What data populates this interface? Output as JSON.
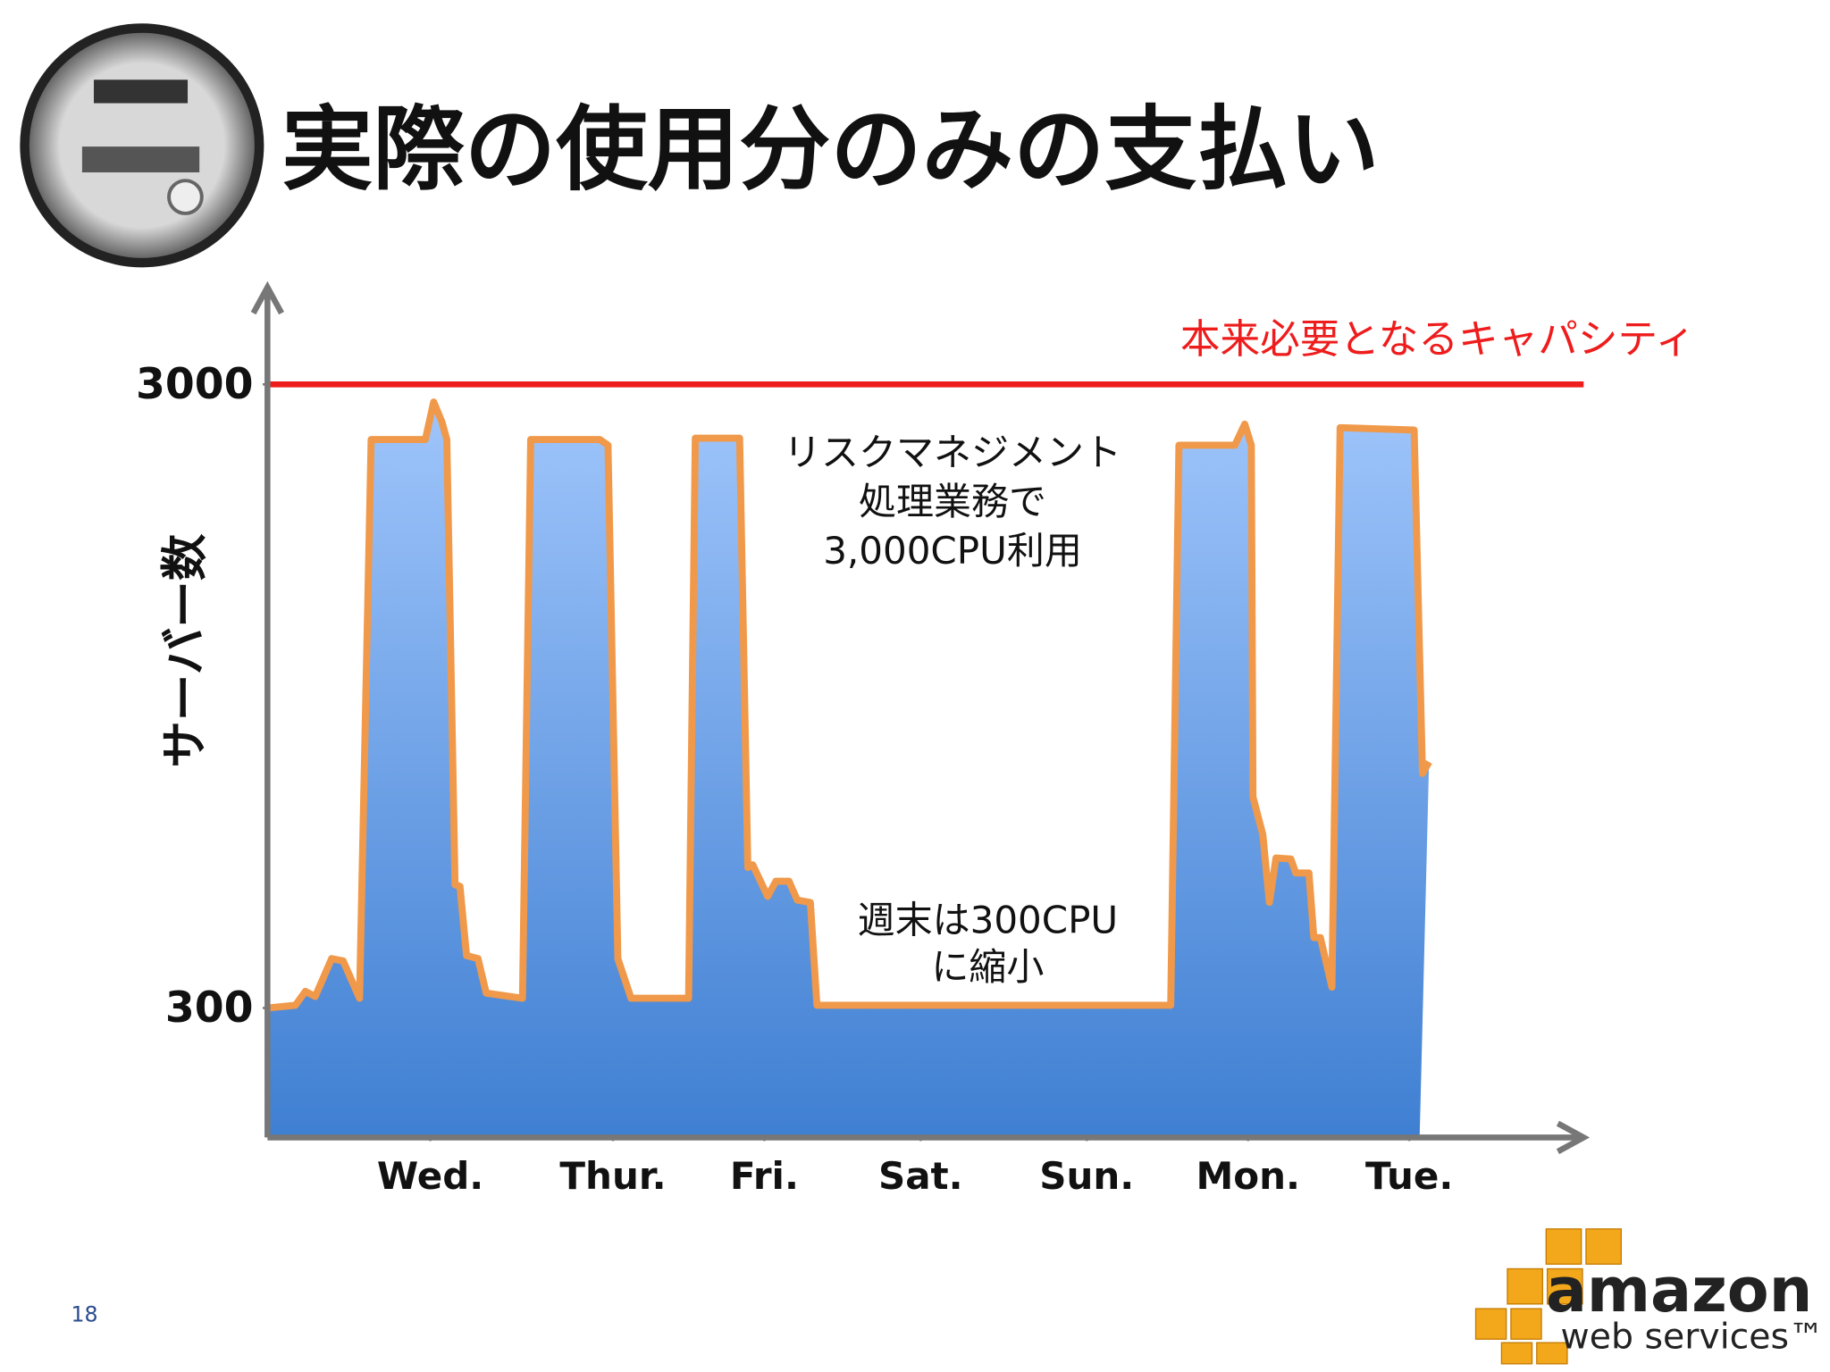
{
  "slide": {
    "title": "実際の使用分のみの支払い",
    "page_number": "18",
    "logo": {
      "brand": "amazon",
      "sub": "web services™"
    }
  },
  "chart_data": {
    "type": "area",
    "ylabel": "サーバー数",
    "log_scale": true,
    "ylim": [
      186,
      4293
    ],
    "yticks": [
      300,
      3000
    ],
    "xlim": [
      0,
      8
    ],
    "xticks": [
      {
        "value": 0.99,
        "label": "Wed."
      },
      {
        "value": 2.1,
        "label": "Thur."
      },
      {
        "value": 3.02,
        "label": "Fri."
      },
      {
        "value": 3.97,
        "label": "Sat."
      },
      {
        "value": 4.98,
        "label": "Sun."
      },
      {
        "value": 5.96,
        "label": "Mon."
      },
      {
        "value": 6.94,
        "label": "Tue."
      }
    ],
    "series": [
      {
        "color": "#f0994a",
        "x": [
          0,
          0.17,
          0.23,
          0.29,
          0.39,
          0.46,
          0.56,
          0.63,
          0.96,
          1.01,
          1.06,
          1.09,
          1.14,
          1.17,
          1.21,
          1.28,
          1.33,
          1.55,
          1.6,
          2.02,
          2.07,
          2.13,
          2.21,
          2.56,
          2.6,
          2.87,
          2.92,
          2.95,
          3.04,
          3.09,
          3.17,
          3.22,
          3.3,
          3.34,
          5.49,
          5.54,
          5.88,
          5.94,
          5.98,
          5.99,
          6.05,
          6.09,
          6.13,
          6.22,
          6.25,
          6.33,
          6.36,
          6.4,
          6.47,
          6.52,
          6.97,
          7.02,
          7.06
        ],
        "values": [
          300,
          303,
          319,
          313,
          360,
          357,
          311,
          2447,
          2447,
          2811,
          2612,
          2447,
          473,
          470,
          364,
          360,
          317,
          311,
          2447,
          2447,
          2396,
          360,
          311,
          311,
          2459,
          2459,
          504,
          509,
          453,
          479,
          479,
          447,
          443,
          303,
          303,
          2396,
          2396,
          2590,
          2396,
          654,
          569,
          443,
          522,
          520,
          494,
          494,
          389,
          389,
          324,
          2557,
          2535,
          713,
          744
        ]
      }
    ],
    "capacity": {
      "label": "本来必要となるキャパシティ",
      "value": 3000,
      "color": "#ee1c1c"
    },
    "annotations": [
      {
        "lines": [
          "リスクマネジメント",
          "処理業務で",
          "3,000CPU利用"
        ]
      },
      {
        "lines": [
          "週末は300CPU",
          "に縮小"
        ]
      }
    ]
  }
}
